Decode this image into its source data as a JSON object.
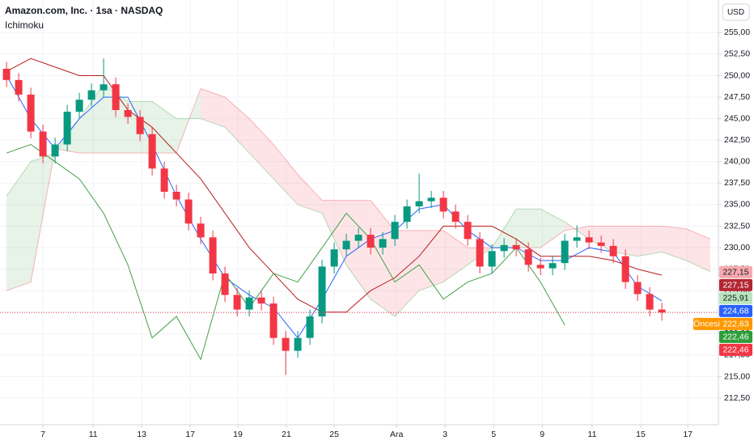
{
  "chart_data": {
    "type": "candlestick",
    "title": "Amazon.com, Inc. · 1sa · NASDAQ",
    "indicator": "Ichimoku",
    "currency": "USD",
    "grid": true,
    "up_color": "#089981",
    "down_color": "#f23645",
    "xlim": [
      -1.77,
      27.83
    ],
    "ylim": [
      209.4,
      258.8
    ],
    "xticks": [
      {
        "value": 0,
        "label": "7"
      },
      {
        "value": 2.07,
        "label": "11"
      },
      {
        "value": 4.07,
        "label": "13"
      },
      {
        "value": 6.07,
        "label": "17"
      },
      {
        "value": 8.03,
        "label": "19"
      },
      {
        "value": 10.03,
        "label": "21"
      },
      {
        "value": 12,
        "label": "25"
      },
      {
        "value": 14.57,
        "label": "Ara"
      },
      {
        "value": 16.57,
        "label": "3"
      },
      {
        "value": 18.57,
        "label": "5"
      },
      {
        "value": 20.57,
        "label": "9"
      },
      {
        "value": 22.63,
        "label": "11"
      },
      {
        "value": 24.63,
        "label": "15"
      },
      {
        "value": 26.57,
        "label": "17"
      }
    ],
    "yticks": [
      {
        "value": 255,
        "label": "255,00"
      },
      {
        "value": 252.5,
        "label": "252,50"
      },
      {
        "value": 250,
        "label": "250,00"
      },
      {
        "value": 247.5,
        "label": "247,50"
      },
      {
        "value": 245,
        "label": "245,00"
      },
      {
        "value": 242.5,
        "label": "242,50"
      },
      {
        "value": 240,
        "label": "240,00"
      },
      {
        "value": 237.5,
        "label": "237,50"
      },
      {
        "value": 235,
        "label": "235,00"
      },
      {
        "value": 232.5,
        "label": "232,50"
      },
      {
        "value": 230,
        "label": "230,00"
      },
      {
        "value": 227.5,
        "label": "227,50"
      },
      {
        "value": 225,
        "label": "225,00"
      },
      {
        "value": 222.5,
        "label": "222,50"
      },
      {
        "value": 220,
        "label": "220,00"
      },
      {
        "value": 217.5,
        "label": "217,50"
      },
      {
        "value": 215,
        "label": "215,00"
      },
      {
        "value": 212.5,
        "label": "212,50"
      }
    ],
    "x": [
      -1.5,
      -1,
      -0.5,
      0,
      0.5,
      1,
      1.5,
      2,
      2.5,
      3,
      3.5,
      4,
      4.5,
      5,
      5.5,
      6,
      6.5,
      7,
      7.5,
      8,
      8.5,
      9,
      9.5,
      10,
      10.5,
      11,
      11.5,
      12,
      12.5,
      13,
      13.5,
      14,
      14.5,
      15,
      15.5,
      16,
      16.5,
      17,
      17.5,
      18,
      18.5,
      19,
      19.5,
      20,
      20.5,
      21,
      21.5,
      22,
      22.5,
      23,
      23.5,
      24,
      24.5,
      25,
      25.5
    ],
    "open": [
      250.8,
      249.5,
      247.8,
      243.5,
      240.6,
      242.0,
      245.8,
      247.2,
      248.3,
      249.0,
      246.0,
      245.2,
      243.2,
      239.2,
      236.5,
      235.6,
      232.8,
      231.2,
      227.0,
      224.5,
      222.8,
      224.2,
      223.5,
      219.5,
      218.0,
      219.5,
      222.0,
      227.8,
      229.8,
      230.8,
      231.5,
      230.0,
      231.0,
      233.0,
      234.8,
      235.4,
      235.8,
      234.2,
      233.0,
      231.0,
      227.8,
      229.6,
      230.3,
      229.8,
      228.0,
      227.6,
      228.2,
      230.8,
      231.2,
      230.6,
      230.2,
      229.0,
      226.0,
      224.6,
      222.8
    ],
    "high": [
      251.6,
      250.3,
      248.6,
      244.3,
      242.8,
      246.6,
      248.0,
      249.1,
      252.0,
      249.8,
      246.8,
      246.0,
      244.0,
      240.0,
      237.3,
      236.4,
      233.6,
      232.0,
      227.8,
      225.3,
      225.0,
      225.0,
      224.3,
      220.3,
      220.3,
      222.8,
      228.6,
      230.6,
      231.6,
      232.3,
      232.3,
      231.8,
      233.8,
      235.6,
      238.6,
      236.6,
      236.6,
      235.0,
      233.8,
      231.8,
      230.4,
      231.1,
      231.1,
      230.6,
      228.8,
      229.0,
      231.6,
      232.6,
      232.0,
      231.4,
      231.0,
      229.8,
      226.8,
      225.4,
      223.6
    ],
    "low": [
      248.7,
      247.0,
      242.7,
      239.8,
      239.8,
      241.2,
      245.0,
      246.4,
      247.5,
      245.2,
      244.4,
      242.4,
      238.4,
      235.7,
      234.8,
      232.0,
      230.4,
      226.2,
      223.7,
      222.0,
      222.0,
      222.7,
      218.7,
      215.2,
      217.2,
      218.7,
      221.2,
      227.0,
      229.0,
      230.0,
      229.2,
      229.2,
      230.2,
      232.2,
      234.0,
      234.6,
      233.4,
      232.2,
      230.2,
      227.0,
      227.0,
      228.8,
      229.0,
      227.2,
      226.8,
      226.8,
      227.4,
      230.0,
      229.8,
      229.4,
      228.2,
      225.2,
      223.8,
      222.0,
      221.5
    ],
    "close": [
      249.5,
      247.8,
      243.5,
      240.6,
      242.0,
      245.8,
      247.2,
      248.3,
      249.0,
      246.0,
      245.2,
      243.2,
      239.2,
      236.5,
      235.6,
      232.8,
      231.2,
      227.0,
      224.5,
      222.8,
      224.2,
      223.5,
      219.5,
      218.0,
      219.5,
      222.0,
      227.8,
      229.8,
      230.8,
      231.5,
      230.0,
      231.0,
      233.0,
      234.8,
      235.4,
      235.8,
      234.2,
      233.0,
      231.0,
      227.8,
      229.6,
      230.3,
      229.8,
      228.0,
      227.6,
      228.2,
      230.8,
      231.2,
      230.6,
      230.2,
      229.0,
      226.0,
      224.6,
      222.8,
      222.46
    ],
    "lines": [
      {
        "color": "#2962ff",
        "x": [
          -1.5,
          -0.5,
          0.5,
          1.5,
          2.5,
          3.5,
          4.5,
          5.5,
          6.5,
          7.5,
          8.5,
          9.5,
          10.5,
          11.5,
          12.5,
          13.5,
          14.5,
          15.5,
          16.5,
          17.5,
          18.5,
          19.5,
          20.5,
          21.5,
          22.5,
          23.5,
          24.5,
          25.5
        ],
        "values": [
          250,
          245,
          241.5,
          245,
          247.5,
          247.5,
          242,
          236,
          231,
          226.5,
          224.5,
          223,
          219.5,
          224,
          229,
          231,
          232,
          234.5,
          235,
          232,
          230,
          230,
          228.5,
          228.5,
          230,
          229.5,
          225.5,
          223.8
        ]
      },
      {
        "color": "#b71c1c",
        "x": [
          -1.5,
          -0.5,
          0.5,
          1.5,
          2.5,
          3.5,
          4.5,
          5.5,
          6.5,
          7.5,
          8.5,
          9.5,
          10.5,
          11.5,
          12.5,
          13.5,
          14.5,
          15.5,
          16.5,
          17.5,
          18.5,
          19.5,
          20.5,
          21.5,
          22.5,
          23.5,
          24.5,
          25.5
        ],
        "values": [
          250.5,
          252,
          251,
          250,
          250,
          246,
          244,
          241,
          238,
          234,
          230,
          227,
          224,
          222.5,
          222.5,
          225,
          226.5,
          229,
          232.5,
          232.5,
          232.5,
          231,
          229,
          229,
          229,
          228.5,
          227.5,
          226.8
        ]
      },
      {
        "color": "#43a047",
        "x": [
          -1.5,
          -0.5,
          0.5,
          1.5,
          2.5,
          3.5,
          4.5,
          5.5,
          6.5,
          7.5,
          8.5,
          9.5,
          10.5,
          11.5,
          12.5,
          13.5,
          14.5,
          15.5,
          16.5,
          17.5,
          18.5,
          19.5,
          20.5,
          21.5
        ],
        "values": [
          241,
          242,
          240,
          238,
          234,
          228,
          219.5,
          222,
          217,
          227,
          223,
          227,
          226,
          230,
          234,
          231,
          226,
          228,
          224,
          226,
          227,
          230,
          226,
          221
        ]
      }
    ],
    "cloud": {
      "up_color": "#43a047",
      "down_color": "#f23645",
      "x": [
        -1.5,
        -0.5,
        0.5,
        1.5,
        2.5,
        3.5,
        4.5,
        5.5,
        6.5,
        7.5,
        8.5,
        9.5,
        10.5,
        11.5,
        12.5,
        13.5,
        14.5,
        15.5,
        16.5,
        17.5,
        18.5,
        19.5,
        20.5,
        21.5,
        22.5,
        23.5,
        24.5,
        25.5,
        26.5,
        27.5
      ],
      "span_a": [
        236,
        240,
        241,
        245,
        249,
        247,
        247,
        245,
        245,
        244,
        241,
        238,
        235,
        234,
        228,
        224,
        222,
        225,
        226,
        228,
        230,
        234.5,
        234.5,
        233,
        231,
        229.5,
        229,
        229.5,
        228.5,
        227.2
      ],
      "span_b": [
        225,
        226,
        241.5,
        241,
        241,
        241,
        241,
        241,
        248.5,
        247.5,
        245,
        242,
        238.5,
        235.5,
        235.5,
        235.5,
        232,
        232,
        232,
        230,
        230,
        230,
        230,
        232,
        232.5,
        232.5,
        232.5,
        232.5,
        232.2,
        231
      ]
    },
    "badges": [
      {
        "value": 227.15,
        "label": "227,15",
        "color": "#f7a9ae",
        "text_color": "#131722"
      },
      {
        "value": 227.15,
        "label": "227,15",
        "color": "#b22833",
        "text_color": "#ffffff"
      },
      {
        "value": 225.91,
        "label": "225,91",
        "color": "#b9e4bd",
        "text_color": "#131722"
      },
      {
        "value": 224.68,
        "label": "224,68",
        "color": "#2962ff",
        "text_color": "#ffffff"
      },
      {
        "value": 222.63,
        "label": "222,63",
        "color": "#ff9800",
        "text_color": "#ffffff",
        "prefix": "Öncesi"
      },
      {
        "value": 222.46,
        "label": "222,46",
        "color": "#2e9e3a",
        "text_color": "#ffffff"
      },
      {
        "value": 222.46,
        "label": "222,46",
        "color": "#f23645",
        "text_color": "#ffffff"
      }
    ]
  }
}
